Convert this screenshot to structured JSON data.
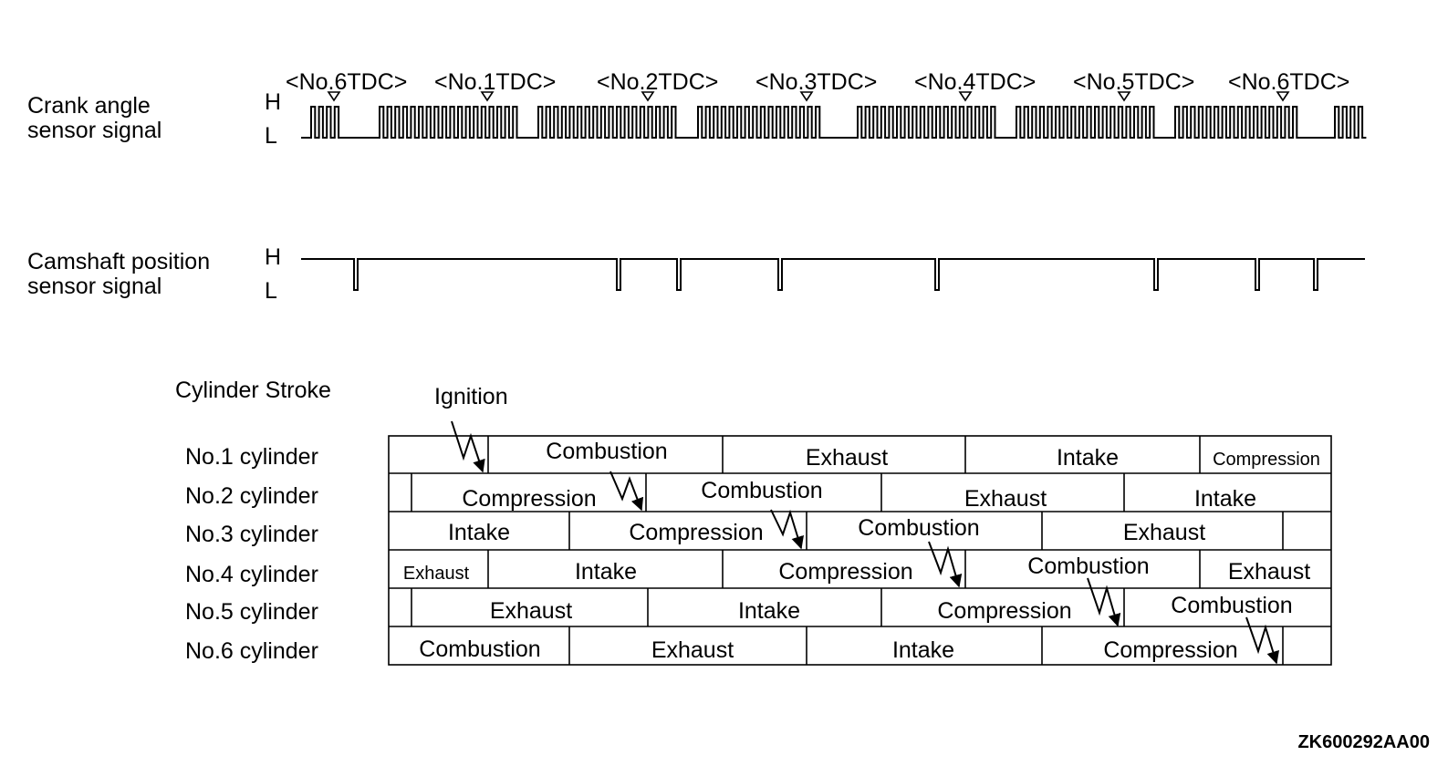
{
  "signals": {
    "crank": {
      "label_line1": "Crank angle",
      "label_line2": "sensor signal",
      "high": "H",
      "low": "L"
    },
    "cam": {
      "label_line1": "Camshaft position",
      "label_line2": "sensor signal",
      "high": "H",
      "low": "L"
    }
  },
  "tdc_markers": [
    "<No.6TDC>",
    "<No.1TDC>",
    "<No.2TDC>",
    "<No.3TDC>",
    "<No.4TDC>",
    "<No.5TDC>",
    "<No.6TDC>"
  ],
  "stroke_table": {
    "title": "Cylinder Stroke",
    "ignition_label": "Ignition",
    "cylinders": [
      "No.1 cylinder",
      "No.2 cylinder",
      "No.3 cylinder",
      "No.4 cylinder",
      "No.5 cylinder",
      "No.6 cylinder"
    ],
    "rows": [
      [
        "",
        "Combustion",
        "Exhaust",
        "Intake",
        "Compression"
      ],
      [
        "",
        "Compression",
        "Combustion",
        "Exhaust",
        "Intake"
      ],
      [
        "Intake",
        "Compression",
        "Combustion",
        "Exhaust",
        ""
      ],
      [
        "Exhaust",
        "Intake",
        "Compression",
        "Combustion",
        "Exhaust"
      ],
      [
        "",
        "Exhaust",
        "Intake",
        "Compression",
        "Combustion"
      ],
      [
        "Combustion",
        "Exhaust",
        "Intake",
        "Compression",
        ""
      ]
    ]
  },
  "figure_code": "ZK600292AA00"
}
